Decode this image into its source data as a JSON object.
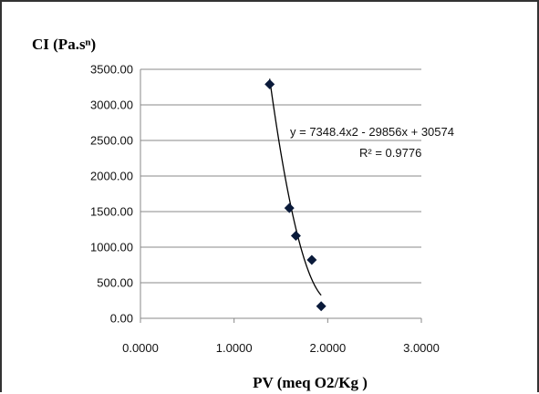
{
  "chart_data": {
    "type": "scatter",
    "ylabel": "CI (Pa.sⁿ)",
    "xlabel": "PV (meq O2/Kg )",
    "xlim": [
      0,
      3
    ],
    "ylim": [
      0,
      3500
    ],
    "x_ticks": [
      0,
      1,
      2,
      3
    ],
    "y_ticks": [
      0,
      500,
      1000,
      1500,
      2000,
      2500,
      3000,
      3500
    ],
    "x_tick_labels": [
      "0.0000",
      "1.0000",
      "2.0000",
      "3.0000"
    ],
    "y_tick_labels": [
      "0.00",
      "500.00",
      "1000.00",
      "1500.00",
      "2000.00",
      "2500.00",
      "3000.00",
      "3500.00"
    ],
    "grid": "horizontal",
    "points": [
      {
        "x": 1.38,
        "y": 3290
      },
      {
        "x": 1.59,
        "y": 1550
      },
      {
        "x": 1.66,
        "y": 1160
      },
      {
        "x": 1.83,
        "y": 820
      },
      {
        "x": 1.93,
        "y": 170
      }
    ],
    "trendline": {
      "type": "polynomial",
      "coefficients": [
        7348.4,
        -29856,
        30574
      ],
      "x_range": [
        1.38,
        1.93
      ],
      "equation": "y = 7348.4x2 - 29856x + 30574",
      "r_squared": "R² = 0.9776"
    },
    "colors": {
      "marker": "#0a1a3a",
      "trendline": "#000000",
      "grid": "#888888"
    }
  }
}
